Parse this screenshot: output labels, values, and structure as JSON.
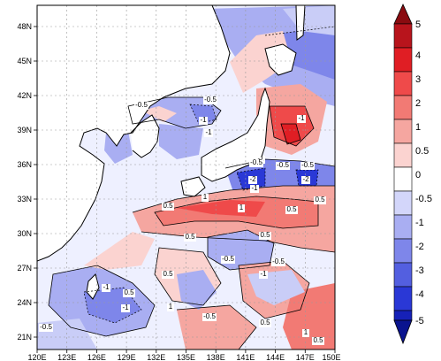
{
  "map": {
    "lon_ticks": [
      "120E",
      "123E",
      "126E",
      "129E",
      "132E",
      "135E",
      "138E",
      "141E",
      "144E",
      "147E",
      "150E"
    ],
    "lat_ticks": [
      "48N",
      "45N",
      "42N",
      "39N",
      "36N",
      "33N",
      "30N",
      "27N",
      "24N",
      "21N"
    ],
    "lon_range": [
      120,
      150
    ],
    "lat_range": [
      20,
      50
    ],
    "land_color": "#ffffff",
    "contour_labels": [
      "-0.5",
      "-0.5",
      "-1",
      "-1",
      "-1",
      "-0.5",
      "-0.5",
      "-0.5",
      "-2",
      "-2",
      "-1",
      "0.5",
      "0.5",
      "0.5",
      "0.5",
      "1",
      "1",
      "-1",
      "0.5",
      "-0.5",
      "-0.5",
      "-1",
      "0.5",
      "-0.5",
      "1",
      "0.5",
      "-0.5",
      "1",
      "-1",
      "0.5",
      "0.5",
      "-1"
    ]
  },
  "colorbar": {
    "labels": [
      "5",
      "4",
      "3",
      "2",
      "1",
      "0.5",
      "0",
      "-0.5",
      "-1",
      "-2",
      "-3",
      "-4",
      "-5"
    ],
    "colors": [
      "#b8141c",
      "#e01e24",
      "#ef4a4a",
      "#f27a74",
      "#f5a6a0",
      "#fbd3d0",
      "#ffffff",
      "#d3d6fa",
      "#a9aef2",
      "#7e86ea",
      "#535fe0",
      "#2a38d6",
      "#1621b8"
    ],
    "arrow_top_color": "#8a0b10",
    "arrow_bottom_color": "#0a148f"
  }
}
